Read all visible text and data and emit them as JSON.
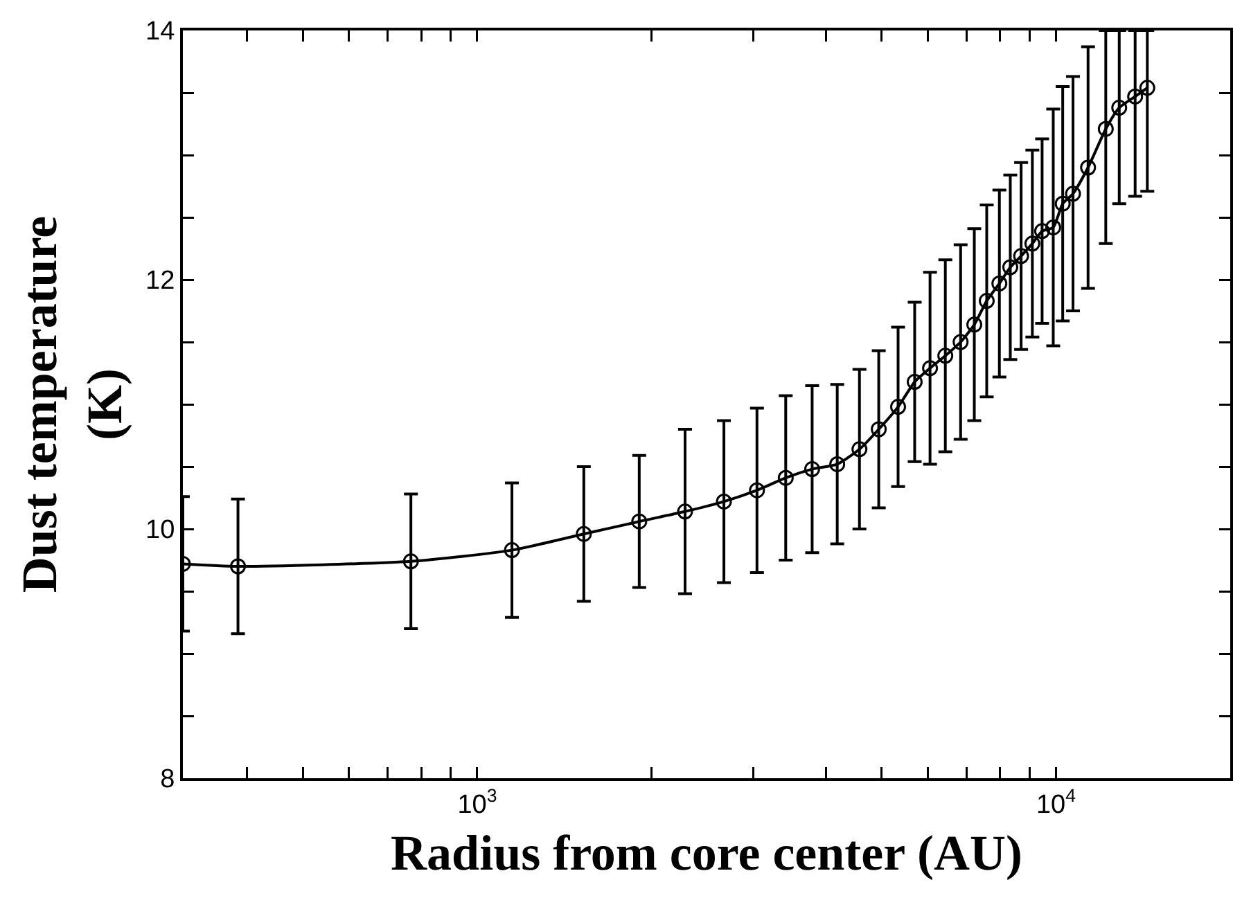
{
  "chart_data": {
    "type": "line",
    "xlabel": "Radius from core center (AU)",
    "ylabel": "Dust temperature\n(K)",
    "log": "x",
    "grid": false,
    "marker": "circle",
    "line_style": "solid",
    "color": "#000000",
    "x": [
      310,
      386,
      768,
      1148,
      1528,
      1905,
      2286,
      2668,
      3043,
      3412,
      3790,
      4188,
      4575,
      4940,
      5335,
      5699,
      6058,
      6438,
      6842,
      7225,
      7591,
      7983,
      8337,
      8704,
      9102,
      9462,
      9890,
      10270,
      10700,
      11360,
      12190,
      12860,
      13700,
      14380
    ],
    "values": [
      9.72,
      9.7,
      9.74,
      9.83,
      9.96,
      10.06,
      10.14,
      10.22,
      10.31,
      10.41,
      10.48,
      10.52,
      10.64,
      10.8,
      10.98,
      11.18,
      11.29,
      11.39,
      11.5,
      11.64,
      11.83,
      11.97,
      12.1,
      12.19,
      12.29,
      12.39,
      12.42,
      12.61,
      12.69,
      12.9,
      13.21,
      13.38,
      13.47,
      13.54
    ],
    "errors": [
      0.54,
      0.54,
      0.54,
      0.54,
      0.54,
      0.53,
      0.66,
      0.65,
      0.66,
      0.66,
      0.67,
      0.64,
      0.64,
      0.63,
      0.64,
      0.64,
      0.77,
      0.77,
      0.78,
      0.77,
      0.77,
      0.75,
      0.74,
      0.75,
      0.75,
      0.74,
      0.95,
      0.94,
      0.94,
      0.97,
      [
        12.29,
        14
      ],
      [
        12.61,
        14
      ],
      [
        12.67,
        14
      ],
      [
        12.71,
        14
      ]
    ],
    "xlim": [
      310,
      20000
    ],
    "xticks": [
      {
        "value": 400,
        "label": null
      },
      {
        "value": 500,
        "label": null
      },
      {
        "value": 600,
        "label": null
      },
      {
        "value": 700,
        "label": null
      },
      {
        "value": 800,
        "label": null
      },
      {
        "value": 900,
        "label": null
      },
      {
        "value": 1000,
        "label": "10$^{3}$"
      },
      {
        "value": 2000,
        "label": null
      },
      {
        "value": 3000,
        "label": null
      },
      {
        "value": 4000,
        "label": null
      },
      {
        "value": 5000,
        "label": null
      },
      {
        "value": 6000,
        "label": null
      },
      {
        "value": 7000,
        "label": null
      },
      {
        "value": 8000,
        "label": null
      },
      {
        "value": 9000,
        "label": null
      },
      {
        "value": 10000,
        "label": "10$^{4}$"
      },
      {
        "value": 20000,
        "label": null
      }
    ],
    "ylim": [
      8,
      14
    ],
    "yticks": [
      8,
      {
        "value": 8.5,
        "label": null
      },
      {
        "value": 9,
        "label": null
      },
      {
        "value": 9.5,
        "label": null
      },
      10,
      {
        "value": 10.5,
        "label": null
      },
      {
        "value": 11,
        "label": null
      },
      {
        "value": 11.5,
        "label": null
      },
      12,
      {
        "value": 12.5,
        "label": null
      },
      {
        "value": 13,
        "label": null
      },
      {
        "value": 13.5,
        "label": null
      },
      14
    ]
  }
}
